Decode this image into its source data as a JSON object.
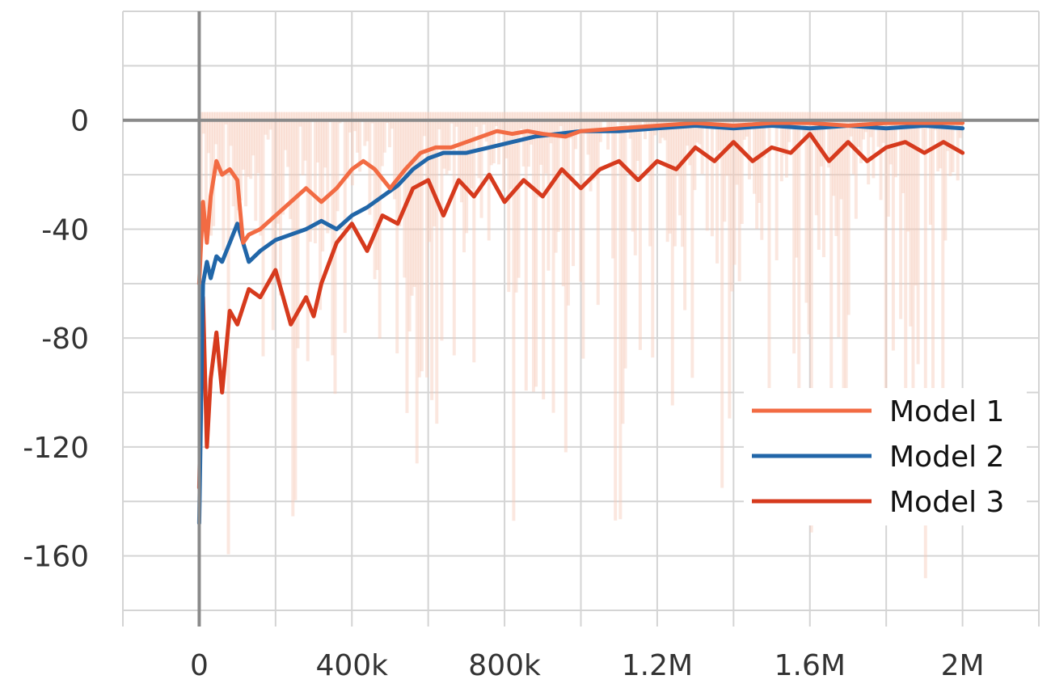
{
  "chart_data": {
    "type": "line",
    "title": "",
    "xlabel": "",
    "ylabel": "",
    "xlim": [
      -200000,
      2200000
    ],
    "ylim": [
      -180,
      40
    ],
    "grid": true,
    "legend_position": "right",
    "x_ticks": [
      {
        "value": 0,
        "label": "0"
      },
      {
        "value": 400000,
        "label": "400k"
      },
      {
        "value": 800000,
        "label": "800k"
      },
      {
        "value": 1200000,
        "label": "1.2M"
      },
      {
        "value": 1600000,
        "label": "1.6M"
      },
      {
        "value": 2000000,
        "label": "2M"
      }
    ],
    "y_ticks": [
      {
        "value": 0,
        "label": "0"
      },
      {
        "value": -40,
        "label": "-40"
      },
      {
        "value": -80,
        "label": "-80"
      },
      {
        "value": -120,
        "label": "-120"
      },
      {
        "value": -160,
        "label": "-160"
      }
    ],
    "series": [
      {
        "name": "Model 1",
        "color": "#f26b43",
        "x": [
          0,
          10000,
          20000,
          30000,
          45000,
          60000,
          80000,
          100000,
          115000,
          130000,
          160000,
          200000,
          240000,
          280000,
          320000,
          360000,
          400000,
          430000,
          460000,
          500000,
          540000,
          580000,
          620000,
          660000,
          700000,
          740000,
          780000,
          820000,
          860000,
          900000,
          960000,
          1000000,
          1100000,
          1200000,
          1300000,
          1400000,
          1500000,
          1600000,
          1700000,
          1800000,
          1900000,
          2000000
        ],
        "y": [
          -60,
          -30,
          -45,
          -28,
          -15,
          -20,
          -18,
          -22,
          -45,
          -42,
          -40,
          -35,
          -30,
          -25,
          -30,
          -25,
          -18,
          -15,
          -18,
          -25,
          -18,
          -12,
          -10,
          -10,
          -8,
          -6,
          -4,
          -5,
          -4,
          -5,
          -6,
          -4,
          -3,
          -2,
          -1,
          -2,
          -1,
          -1,
          -2,
          -1,
          -1,
          -1
        ]
      },
      {
        "name": "Model 2",
        "color": "#2166a8",
        "x": [
          0,
          10000,
          20000,
          30000,
          45000,
          60000,
          80000,
          100000,
          130000,
          160000,
          200000,
          240000,
          280000,
          320000,
          360000,
          400000,
          440000,
          480000,
          520000,
          560000,
          600000,
          640000,
          700000,
          760000,
          820000,
          880000,
          940000,
          1000000,
          1100000,
          1200000,
          1300000,
          1400000,
          1500000,
          1600000,
          1700000,
          1800000,
          1900000,
          2000000
        ],
        "y": [
          -148,
          -60,
          -52,
          -58,
          -50,
          -52,
          -45,
          -38,
          -52,
          -48,
          -44,
          -42,
          -40,
          -37,
          -40,
          -35,
          -32,
          -28,
          -24,
          -18,
          -14,
          -12,
          -12,
          -10,
          -8,
          -6,
          -5,
          -4,
          -4,
          -3,
          -2,
          -3,
          -2,
          -3,
          -2,
          -3,
          -2,
          -3
        ]
      },
      {
        "name": "Model 3",
        "color": "#d63a1d",
        "x": [
          0,
          10000,
          20000,
          30000,
          45000,
          60000,
          80000,
          100000,
          130000,
          160000,
          200000,
          240000,
          280000,
          300000,
          320000,
          360000,
          400000,
          440000,
          480000,
          520000,
          560000,
          600000,
          640000,
          680000,
          720000,
          760000,
          800000,
          850000,
          900000,
          950000,
          1000000,
          1050000,
          1100000,
          1150000,
          1200000,
          1250000,
          1300000,
          1350000,
          1400000,
          1450000,
          1500000,
          1550000,
          1600000,
          1650000,
          1700000,
          1750000,
          1800000,
          1850000,
          1900000,
          1950000,
          2000000
        ],
        "y": [
          -135,
          -65,
          -120,
          -95,
          -78,
          -100,
          -70,
          -75,
          -62,
          -65,
          -55,
          -75,
          -65,
          -72,
          -60,
          -45,
          -38,
          -48,
          -35,
          -38,
          -25,
          -22,
          -35,
          -22,
          -28,
          -20,
          -30,
          -22,
          -28,
          -18,
          -25,
          -18,
          -15,
          -22,
          -15,
          -18,
          -10,
          -15,
          -8,
          -15,
          -10,
          -12,
          -5,
          -15,
          -8,
          -15,
          -10,
          -8,
          -12,
          -8,
          -12
        ]
      }
    ]
  }
}
